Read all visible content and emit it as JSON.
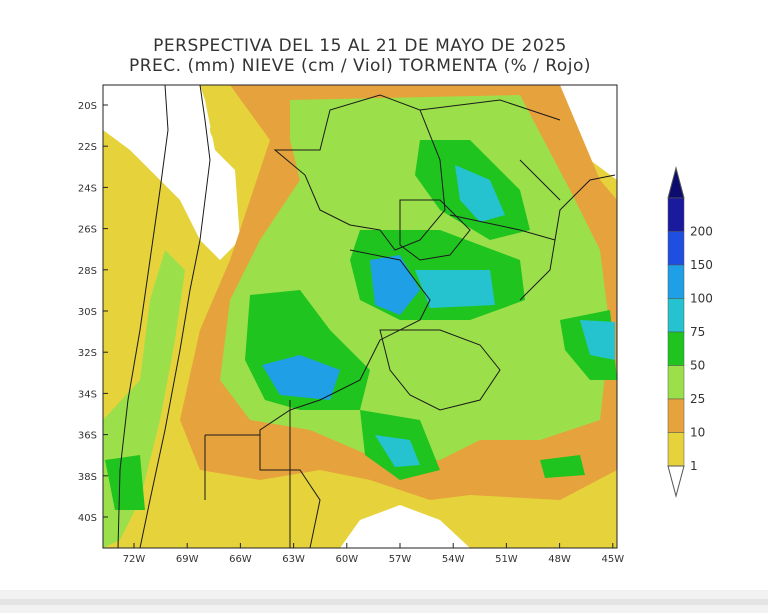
{
  "title": {
    "line1": "PERSPECTIVA DEL 15 AL 21 DE MAYO DE 2025",
    "line2": "PREC. (mm) NIEVE (cm / Viol) TORMENTA (% / Rojo)"
  },
  "lat_ticks": [
    "20S",
    "22S",
    "24S",
    "26S",
    "28S",
    "30S",
    "32S",
    "34S",
    "36S",
    "38S",
    "40S"
  ],
  "lon_ticks": [
    "72W",
    "69W",
    "66W",
    "63W",
    "60W",
    "57W",
    "54W",
    "51W",
    "48W",
    "45W"
  ],
  "colorbar": {
    "labels": [
      "200",
      "150",
      "100",
      "75",
      "50",
      "25",
      "10",
      "1"
    ],
    "colors": [
      "#1a1a9c",
      "#1f4fe0",
      "#1e9fe6",
      "#25c3d0",
      "#1fc41f",
      "#9be04a",
      "#e6a23c",
      "#e6d23a"
    ]
  }
}
